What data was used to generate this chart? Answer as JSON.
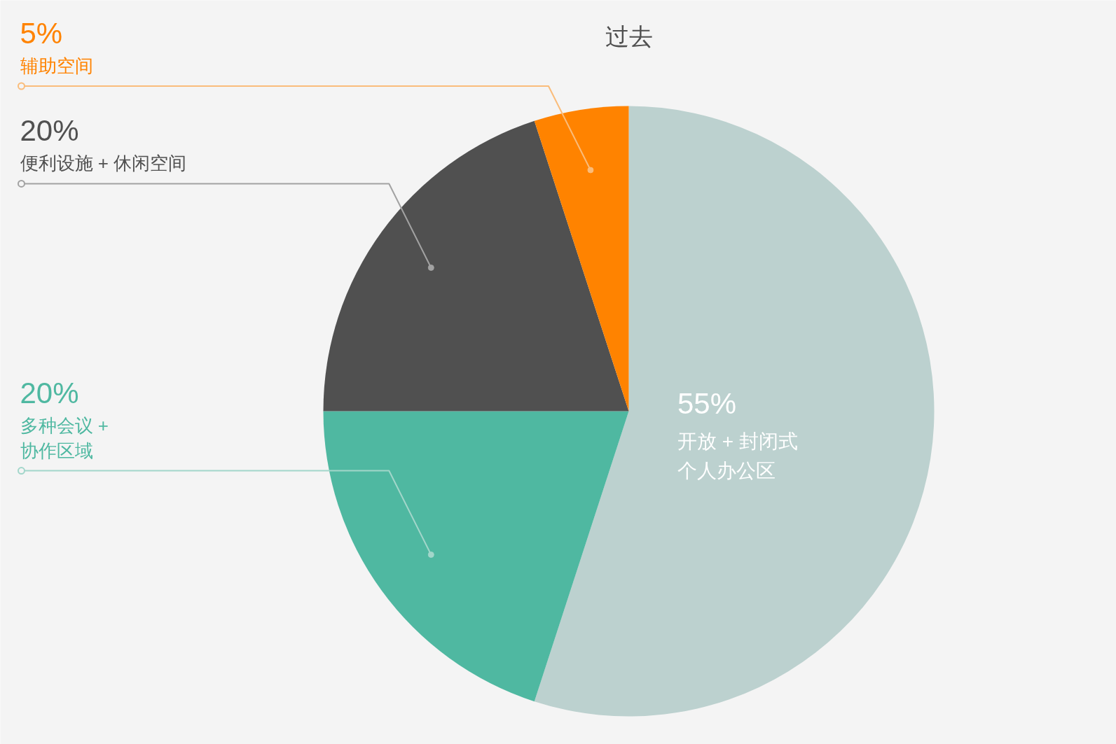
{
  "chart_data": {
    "type": "pie",
    "title": "过去",
    "categories": [
      "开放 + 封闭式个人办公区",
      "多种会议 + 协作区域",
      "便利设施 + 休闲空间",
      "辅助空间"
    ],
    "values": [
      55,
      20,
      20,
      5
    ],
    "colors": [
      "#bcd1cf",
      "#4fb8a1",
      "#505050",
      "#ff8300"
    ],
    "value_labels": [
      "55%",
      "20%",
      "20%",
      "5%"
    ]
  }
}
